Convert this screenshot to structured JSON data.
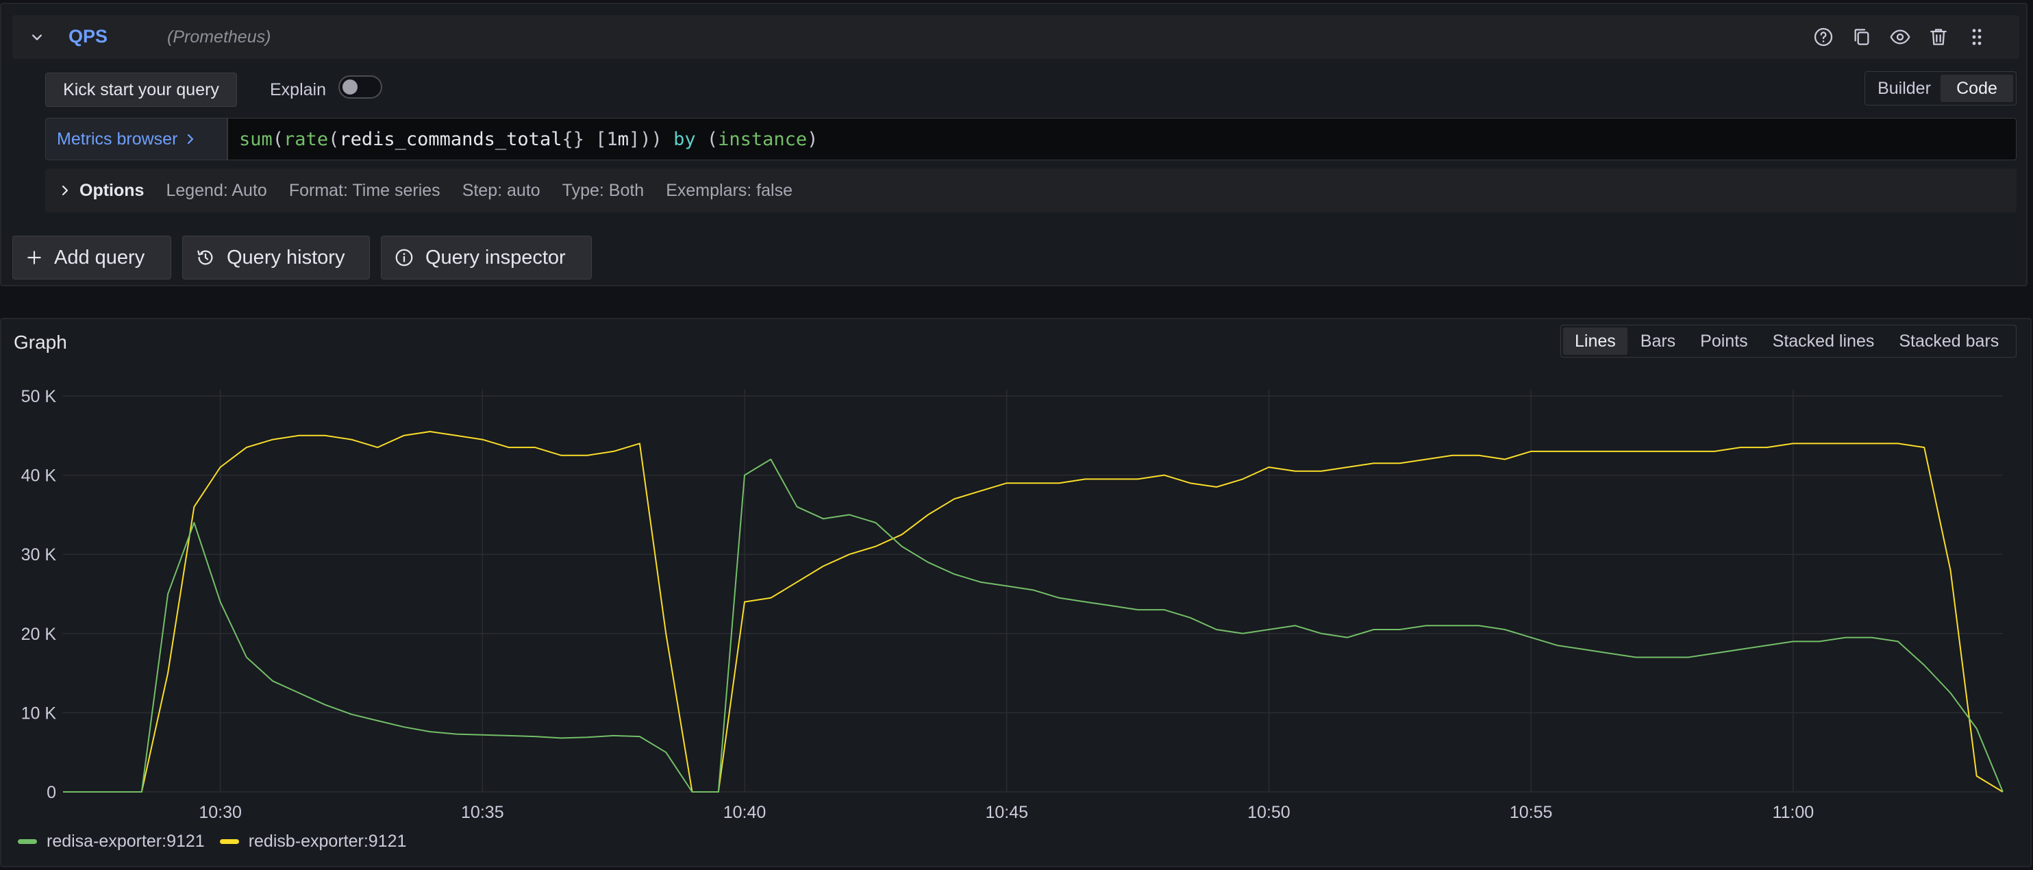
{
  "query": {
    "name": "QPS",
    "datasource": "(Prometheus)",
    "kick_start_label": "Kick start your query",
    "explain_label": "Explain",
    "explain_enabled": false,
    "mode_options": [
      "Builder",
      "Code"
    ],
    "mode_selected": "Code",
    "metrics_browser_label": "Metrics browser",
    "expression": "sum(rate(redis_commands_total{} [1m])) by (instance)",
    "options": {
      "title": "Options",
      "legend": "Legend: Auto",
      "format": "Format: Time series",
      "step": "Step: auto",
      "type": "Type: Both",
      "exemplars": "Exemplars: false"
    },
    "header_icons": [
      "help-icon",
      "duplicate-icon",
      "eye-icon",
      "trash-icon",
      "drag-handle-icon"
    ]
  },
  "actions": {
    "add_query": "Add query",
    "query_history": "Query history",
    "query_inspector": "Query inspector"
  },
  "graph": {
    "title": "Graph",
    "viz_options": [
      "Lines",
      "Bars",
      "Points",
      "Stacked lines",
      "Stacked bars"
    ],
    "viz_selected": "Lines"
  },
  "colors": {
    "series_a": "#73bf69",
    "series_b": "#fade2a",
    "accent": "#6e9fff"
  },
  "chart_data": {
    "type": "line",
    "title": "",
    "xlabel": "",
    "ylabel": "",
    "xlim": [
      "10:27",
      "11:04"
    ],
    "ylim": [
      0,
      50000
    ],
    "x_ticks": [
      "10:30",
      "10:35",
      "10:40",
      "10:45",
      "10:50",
      "10:55",
      "11:00"
    ],
    "y_ticks": [
      "0",
      "10 K",
      "20 K",
      "30 K",
      "40 K",
      "50 K"
    ],
    "y_tick_values": [
      0,
      10000,
      20000,
      30000,
      40000,
      50000
    ],
    "grid": true,
    "legend_position": "bottom-left",
    "x": [
      "10:27",
      "10:27:30",
      "10:28",
      "10:28:30",
      "10:29",
      "10:29:30",
      "10:30",
      "10:30:30",
      "10:31",
      "10:31:30",
      "10:32",
      "10:32:30",
      "10:33",
      "10:33:30",
      "10:34",
      "10:34:30",
      "10:35",
      "10:35:30",
      "10:36",
      "10:36:30",
      "10:37",
      "10:37:30",
      "10:38",
      "10:38:30",
      "10:39",
      "10:39:30",
      "10:40",
      "10:40:30",
      "10:41",
      "10:41:30",
      "10:42",
      "10:42:30",
      "10:43",
      "10:43:30",
      "10:44",
      "10:44:30",
      "10:45",
      "10:45:30",
      "10:46",
      "10:46:30",
      "10:47",
      "10:47:30",
      "10:48",
      "10:48:30",
      "10:49",
      "10:49:30",
      "10:50",
      "10:50:30",
      "10:51",
      "10:51:30",
      "10:52",
      "10:52:30",
      "10:53",
      "10:53:30",
      "10:54",
      "10:54:30",
      "10:55",
      "10:55:30",
      "10:56",
      "10:56:30",
      "10:57",
      "10:57:30",
      "10:58",
      "10:58:30",
      "10:59",
      "10:59:30",
      "11:00",
      "11:00:30",
      "11:01",
      "11:01:30",
      "11:02",
      "11:02:30",
      "11:03",
      "11:03:30",
      "11:04"
    ],
    "series": [
      {
        "name": "redisa-exporter:9121",
        "values": [
          0,
          0,
          0,
          0,
          25000,
          34000,
          24000,
          17000,
          14000,
          12500,
          11000,
          9800,
          9000,
          8200,
          7600,
          7300,
          7200,
          7100,
          7000,
          6800,
          6900,
          7100,
          7000,
          5000,
          0,
          0,
          40000,
          42000,
          36000,
          34500,
          35000,
          34000,
          31000,
          29000,
          27500,
          26500,
          26000,
          25500,
          24500,
          24000,
          23500,
          23000,
          23000,
          22000,
          20500,
          20000,
          20500,
          21000,
          20000,
          19500,
          20500,
          20500,
          21000,
          21000,
          21000,
          20500,
          19500,
          18500,
          18000,
          17500,
          17000,
          17000,
          17000,
          17500,
          18000,
          18500,
          19000,
          19000,
          19500,
          19500,
          19000,
          16000,
          12500,
          8000,
          0
        ]
      },
      {
        "name": "redisb-exporter:9121",
        "values": [
          0,
          0,
          0,
          0,
          15000,
          36000,
          41000,
          43500,
          44500,
          45000,
          45000,
          44500,
          43500,
          45000,
          45500,
          45000,
          44500,
          43500,
          43500,
          42500,
          42500,
          43000,
          44000,
          20000,
          0,
          0,
          24000,
          24500,
          26500,
          28500,
          30000,
          31000,
          32500,
          35000,
          37000,
          38000,
          39000,
          39000,
          39000,
          39500,
          39500,
          39500,
          40000,
          39000,
          38500,
          39500,
          41000,
          40500,
          40500,
          41000,
          41500,
          41500,
          42000,
          42500,
          42500,
          42000,
          43000,
          43000,
          43000,
          43000,
          43000,
          43000,
          43000,
          43000,
          43500,
          43500,
          44000,
          44000,
          44000,
          44000,
          44000,
          43500,
          28000,
          2000,
          0
        ]
      }
    ]
  }
}
